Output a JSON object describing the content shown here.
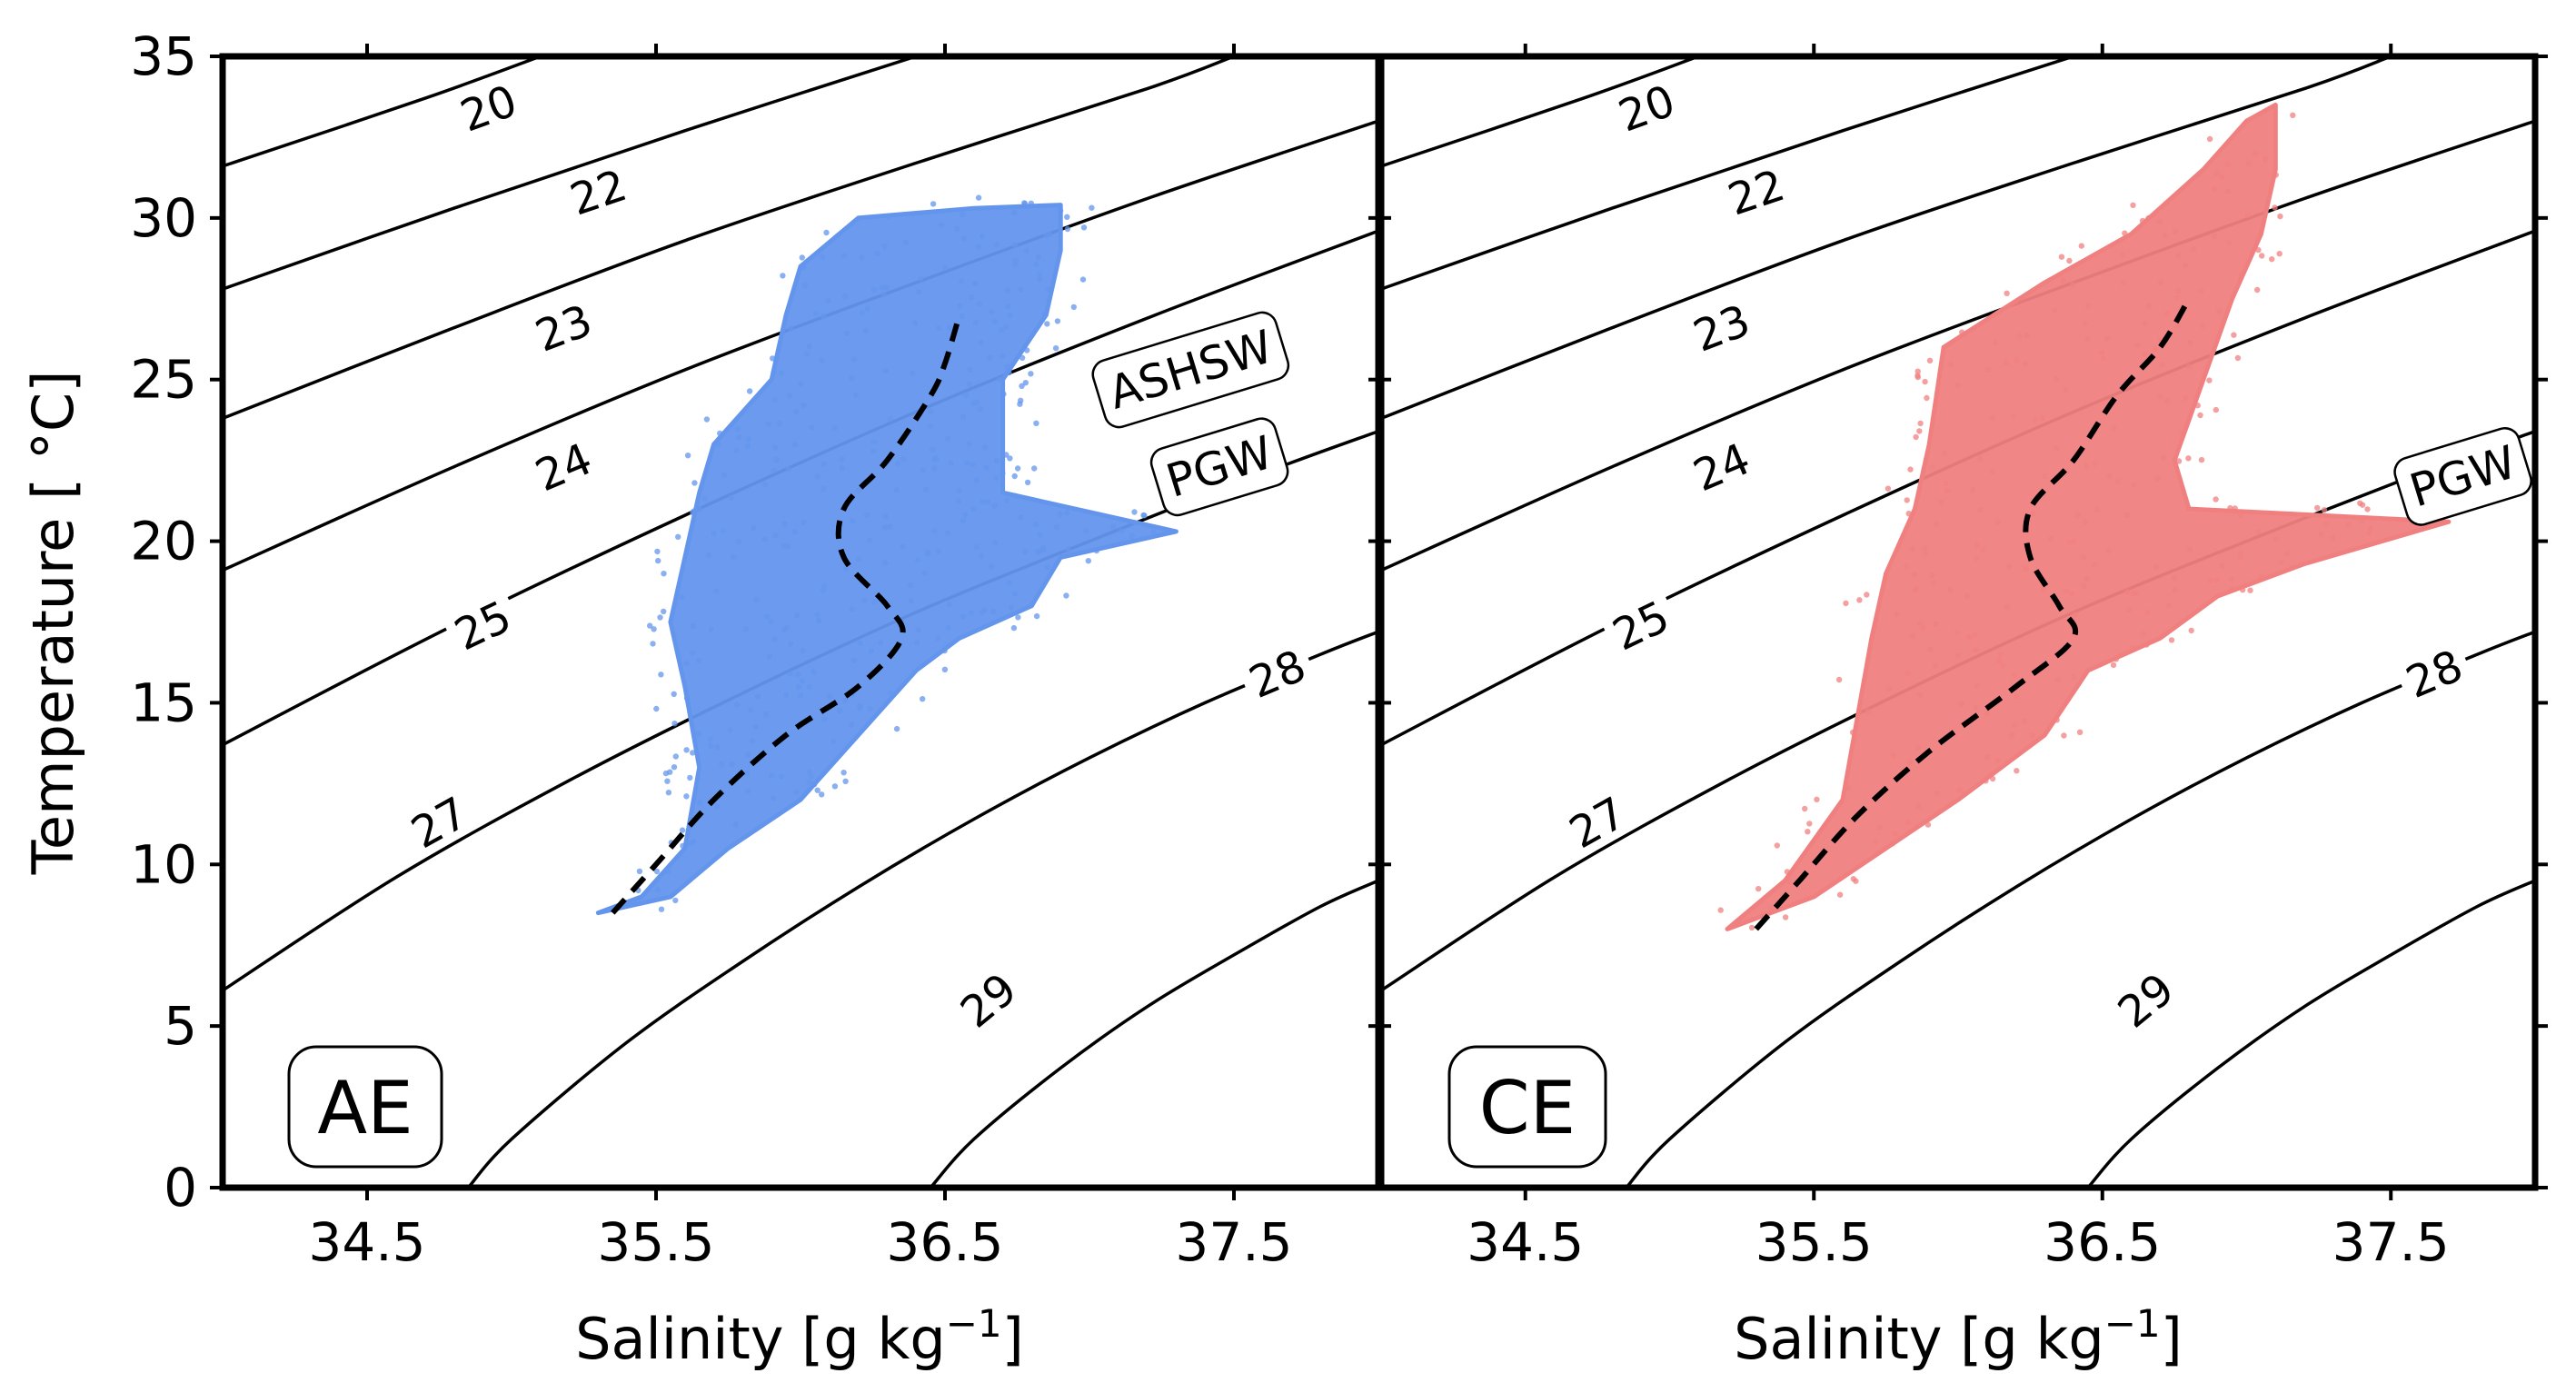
{
  "chart_data": [
    {
      "type": "scatter",
      "panel_label": "AE",
      "xlabel": "Salinity [g kg⁻¹]",
      "ylabel": "Temperature [ °C]",
      "xlim": [
        34.0,
        38.0
      ],
      "ylim": [
        0,
        35
      ],
      "xticks": [
        "34.5",
        "35.5",
        "36.5",
        "37.5"
      ],
      "yticks": [
        "0",
        "5",
        "10",
        "15",
        "20",
        "25",
        "30",
        "35"
      ],
      "point_color": "#6495ED",
      "profile_envelope": [
        [
          35.3,
          8.5
        ],
        [
          35.45,
          9.0
        ],
        [
          35.6,
          10.5
        ],
        [
          35.65,
          13.0
        ],
        [
          35.6,
          15.5
        ],
        [
          35.55,
          17.5
        ],
        [
          35.6,
          19.5
        ],
        [
          35.65,
          21.5
        ],
        [
          35.7,
          23.0
        ],
        [
          35.9,
          25.0
        ],
        [
          35.95,
          27.0
        ],
        [
          36.0,
          28.5
        ],
        [
          36.2,
          30.0
        ],
        [
          36.6,
          30.3
        ],
        [
          36.9,
          30.4
        ],
        [
          36.9,
          29.0
        ],
        [
          36.85,
          27.0
        ],
        [
          36.7,
          25.0
        ],
        [
          36.7,
          23.0
        ],
        [
          36.7,
          21.5
        ],
        [
          37.3,
          20.3
        ],
        [
          36.9,
          19.5
        ],
        [
          36.8,
          18.0
        ],
        [
          36.55,
          17.0
        ],
        [
          36.4,
          16.0
        ],
        [
          36.2,
          14.0
        ],
        [
          36.0,
          12.0
        ],
        [
          35.75,
          10.5
        ],
        [
          35.55,
          9.0
        ]
      ],
      "mean_profile": {
        "x": [
          35.35,
          35.5,
          35.7,
          35.95,
          36.2,
          36.35,
          36.3,
          36.15,
          36.15,
          36.3,
          36.45,
          36.5,
          36.55
        ],
        "y": [
          8.5,
          10.0,
          12.0,
          14.0,
          15.5,
          17.0,
          18.0,
          19.5,
          21.0,
          22.5,
          24.5,
          25.5,
          27.0
        ]
      },
      "water_masses": [
        {
          "name": "ASHSW",
          "x": 37.35,
          "y": 25.3
        },
        {
          "name": "PGW",
          "x": 37.45,
          "y": 22.3
        }
      ]
    },
    {
      "type": "scatter",
      "panel_label": "CE",
      "xlabel": "Salinity [g kg⁻¹]",
      "ylabel": "",
      "xlim": [
        34.0,
        38.0
      ],
      "ylim": [
        0,
        35
      ],
      "xticks": [
        "34.5",
        "35.5",
        "36.5",
        "37.5"
      ],
      "yticks": [],
      "point_color": "#F08080",
      "profile_envelope": [
        [
          35.2,
          8.0
        ],
        [
          35.4,
          9.5
        ],
        [
          35.6,
          12.0
        ],
        [
          35.65,
          14.5
        ],
        [
          35.7,
          17.0
        ],
        [
          35.75,
          19.0
        ],
        [
          35.85,
          21.0
        ],
        [
          35.9,
          23.0
        ],
        [
          35.95,
          26.0
        ],
        [
          36.3,
          28.0
        ],
        [
          36.6,
          29.5
        ],
        [
          36.85,
          31.5
        ],
        [
          37.0,
          33.0
        ],
        [
          37.1,
          33.5
        ],
        [
          37.1,
          31.5
        ],
        [
          37.05,
          29.5
        ],
        [
          36.95,
          27.5
        ],
        [
          36.85,
          25.0
        ],
        [
          36.75,
          22.5
        ],
        [
          36.8,
          21.0
        ],
        [
          37.7,
          20.6
        ],
        [
          37.2,
          19.3
        ],
        [
          36.9,
          18.3
        ],
        [
          36.7,
          17.0
        ],
        [
          36.45,
          16.0
        ],
        [
          36.3,
          14.0
        ],
        [
          36.0,
          12.0
        ],
        [
          35.75,
          10.5
        ],
        [
          35.5,
          9.0
        ]
      ],
      "mean_profile": {
        "x": [
          35.3,
          35.45,
          35.65,
          35.9,
          36.2,
          36.4,
          36.35,
          36.25,
          36.25,
          36.4,
          36.55,
          36.7,
          36.8
        ],
        "y": [
          8.0,
          9.5,
          11.5,
          13.5,
          15.5,
          17.0,
          18.0,
          19.5,
          21.0,
          22.5,
          24.5,
          26.0,
          27.5
        ]
      },
      "water_masses": [
        {
          "name": "PGW",
          "x": 37.75,
          "y": 22.0
        }
      ]
    }
  ],
  "isopycnals": [
    {
      "label": "20",
      "points": [
        [
          34.0,
          31.6
        ],
        [
          34.7,
          33.7
        ],
        [
          35.1,
          35.0
        ]
      ],
      "label_at": [
        34.92,
        33.4
      ]
    },
    {
      "label": "22",
      "points": [
        [
          34.0,
          27.8
        ],
        [
          34.8,
          30.3
        ],
        [
          35.6,
          32.7
        ],
        [
          36.4,
          35.0
        ]
      ],
      "label_at": [
        35.3,
        30.8
      ]
    },
    {
      "label": "23",
      "points": [
        [
          34.0,
          23.8
        ],
        [
          34.8,
          26.6
        ],
        [
          35.6,
          29.3
        ],
        [
          36.4,
          31.7
        ],
        [
          37.2,
          34.0
        ],
        [
          37.5,
          35.0
        ]
      ],
      "label_at": [
        35.18,
        26.6
      ]
    },
    {
      "label": "24",
      "points": [
        [
          34.0,
          19.1
        ],
        [
          34.8,
          22.3
        ],
        [
          35.6,
          25.3
        ],
        [
          36.4,
          28.0
        ],
        [
          37.2,
          30.6
        ],
        [
          38.0,
          33.0
        ]
      ],
      "label_at": [
        35.18,
        22.3
      ]
    },
    {
      "label": "25",
      "points": [
        [
          34.0,
          13.7
        ],
        [
          34.8,
          17.4
        ],
        [
          35.6,
          20.8
        ],
        [
          36.4,
          24.0
        ],
        [
          37.2,
          26.9
        ],
        [
          38.0,
          29.6
        ]
      ],
      "label_at": [
        34.9,
        17.4
      ]
    },
    {
      "label": "27",
      "points": [
        [
          34.0,
          6.1
        ],
        [
          34.6,
          9.6
        ],
        [
          35.2,
          12.6
        ],
        [
          35.8,
          15.3
        ],
        [
          36.4,
          17.8
        ],
        [
          37.0,
          20.0
        ],
        [
          37.6,
          22.1
        ],
        [
          38.0,
          23.4
        ]
      ],
      "label_at": [
        34.75,
        11.3
      ]
    },
    {
      "label": "28",
      "points": [
        [
          34.85,
          0.0
        ],
        [
          35.0,
          1.5
        ],
        [
          35.4,
          4.5
        ],
        [
          35.8,
          7.0
        ],
        [
          36.2,
          9.3
        ],
        [
          36.6,
          11.4
        ],
        [
          37.0,
          13.3
        ],
        [
          37.4,
          15.0
        ],
        [
          37.8,
          16.5
        ],
        [
          38.0,
          17.2
        ]
      ],
      "label_at": [
        37.65,
        15.9
      ]
    },
    {
      "label": "29",
      "points": [
        [
          36.45,
          0.0
        ],
        [
          36.6,
          1.5
        ],
        [
          36.9,
          3.7
        ],
        [
          37.2,
          5.6
        ],
        [
          37.5,
          7.2
        ],
        [
          37.8,
          8.7
        ],
        [
          38.0,
          9.5
        ]
      ],
      "label_at": [
        36.65,
        5.8
      ]
    }
  ]
}
